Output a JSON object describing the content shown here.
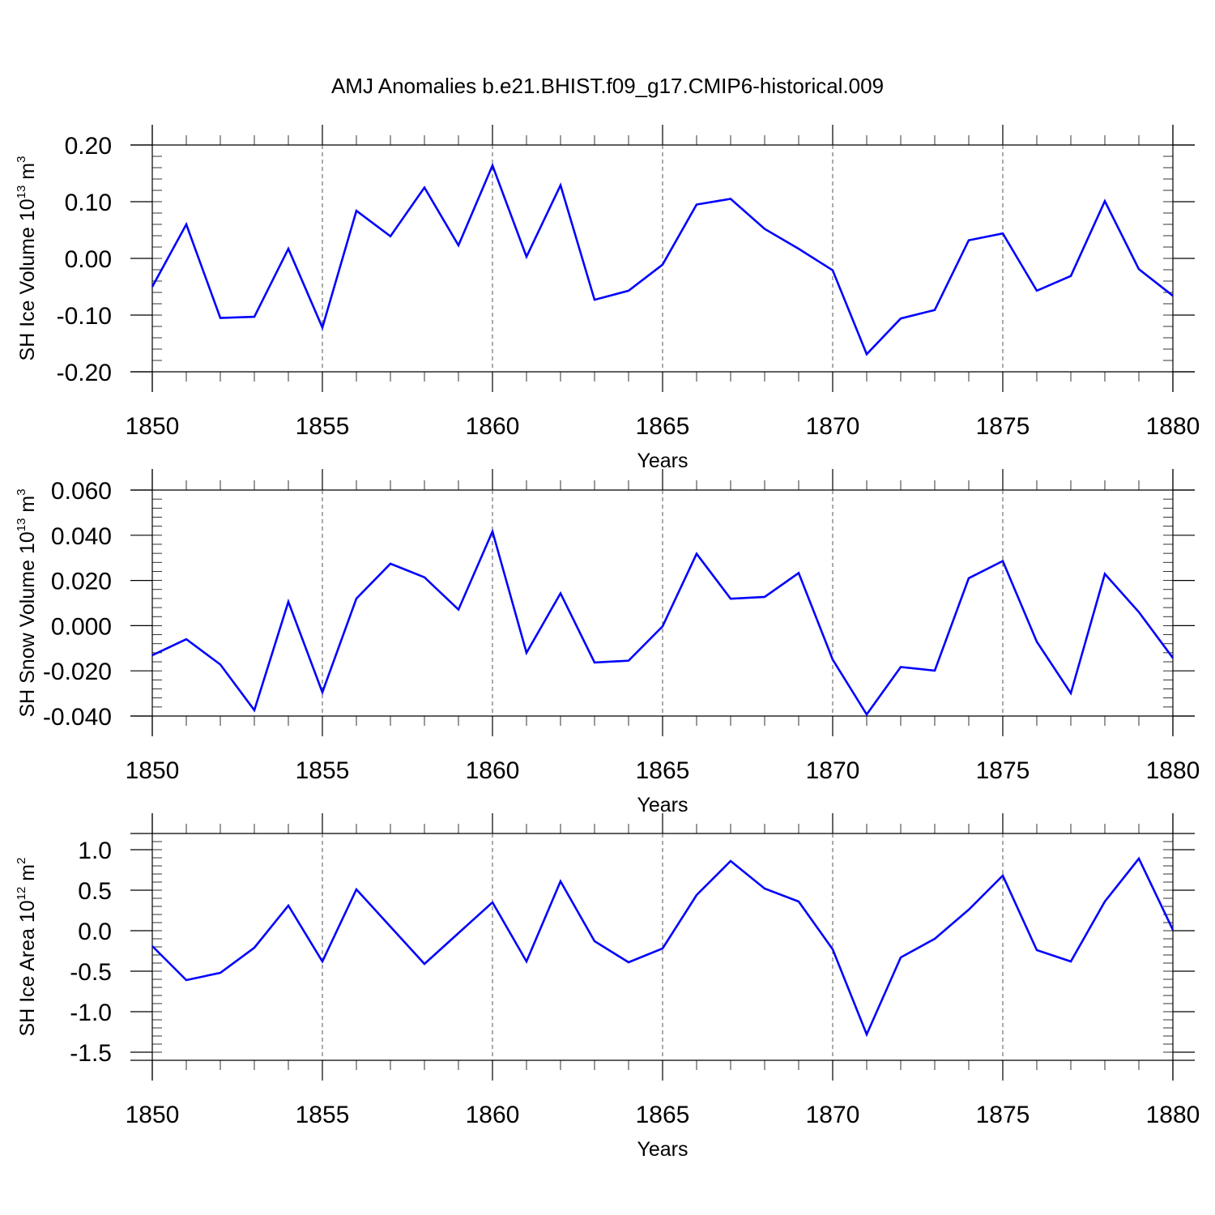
{
  "figure_title": "AMJ Anomalies b.e21.BHIST.f09_g17.CMIP6-historical.009",
  "colors": {
    "line": "#0000ff",
    "axis": "#000000",
    "grid": "#555555",
    "background": "#ffffff"
  },
  "chart_data": [
    {
      "type": "line",
      "xlabel": "Years",
      "ylabel": {
        "base": "SH Ice Volume 10",
        "exp": "13",
        "unit": " m",
        "unit_exp": "3"
      },
      "xlim": [
        1850,
        1880
      ],
      "ylim": [
        -0.2,
        0.2
      ],
      "x_ticks": [
        1850,
        1855,
        1860,
        1865,
        1870,
        1875,
        1880
      ],
      "x_tick_labels": [
        "1850",
        "1855",
        "1860",
        "1865",
        "1870",
        "1875",
        "1880"
      ],
      "y_ticks": [
        0.2,
        0.1,
        0.0,
        -0.1,
        -0.2
      ],
      "y_tick_labels": [
        "0.20",
        "0.10",
        "0.00",
        "-0.10",
        "-0.20"
      ],
      "grid": "vertical dashed at major x ticks",
      "series": [
        {
          "name": "SH Ice Volume",
          "x": [
            1850,
            1851,
            1852,
            1853,
            1854,
            1855,
            1856,
            1857,
            1858,
            1859,
            1860,
            1861,
            1862,
            1863,
            1864,
            1865,
            1866,
            1867,
            1868,
            1869,
            1870,
            1871,
            1872,
            1873,
            1874,
            1875,
            1876,
            1877,
            1878,
            1879,
            1880
          ],
          "values": [
            -0.05,
            0.06,
            -0.105,
            -0.103,
            0.017,
            -0.122,
            0.084,
            0.039,
            0.125,
            0.023,
            0.164,
            0.003,
            0.129,
            -0.073,
            -0.057,
            -0.011,
            0.095,
            0.105,
            0.052,
            0.017,
            -0.021,
            -0.169,
            -0.106,
            -0.091,
            0.032,
            0.044,
            -0.057,
            -0.031,
            0.101,
            -0.019,
            -0.066
          ]
        }
      ]
    },
    {
      "type": "line",
      "xlabel": "Years",
      "ylabel": {
        "base": "SH Snow Volume 10",
        "exp": "13",
        "unit": " m",
        "unit_exp": "3"
      },
      "xlim": [
        1850,
        1880
      ],
      "ylim": [
        -0.04,
        0.06
      ],
      "x_ticks": [
        1850,
        1855,
        1860,
        1865,
        1870,
        1875,
        1880
      ],
      "x_tick_labels": [
        "1850",
        "1855",
        "1860",
        "1865",
        "1870",
        "1875",
        "1880"
      ],
      "y_ticks": [
        0.06,
        0.04,
        0.02,
        0.0,
        -0.02,
        -0.04
      ],
      "y_tick_labels": [
        "0.060",
        "0.040",
        "0.020",
        "0.000",
        "-0.020",
        "-0.040"
      ],
      "grid": "vertical dashed at major x ticks",
      "series": [
        {
          "name": "SH Snow Volume",
          "x": [
            1850,
            1851,
            1852,
            1853,
            1854,
            1855,
            1856,
            1857,
            1858,
            1859,
            1860,
            1861,
            1862,
            1863,
            1864,
            1865,
            1866,
            1867,
            1868,
            1869,
            1870,
            1871,
            1872,
            1873,
            1874,
            1875,
            1876,
            1877,
            1878,
            1879,
            1880
          ],
          "values": [
            -0.0131,
            -0.006,
            -0.0172,
            -0.0374,
            0.0106,
            -0.0295,
            0.012,
            0.0274,
            0.0214,
            0.0071,
            0.0417,
            -0.012,
            0.0143,
            -0.0163,
            -0.0155,
            -0.0003,
            0.0318,
            0.0119,
            0.0127,
            0.0233,
            -0.015,
            -0.0393,
            -0.0183,
            -0.0199,
            0.021,
            0.0286,
            -0.0071,
            -0.0299,
            0.0229,
            0.006,
            -0.0143
          ]
        }
      ]
    },
    {
      "type": "line",
      "xlabel": "Years",
      "ylabel": {
        "base": "SH Ice Area 10",
        "exp": "12",
        "unit": " m",
        "unit_exp": "2"
      },
      "xlim": [
        1850,
        1880
      ],
      "ylim": [
        -1.6,
        1.2
      ],
      "x_ticks": [
        1850,
        1855,
        1860,
        1865,
        1870,
        1875,
        1880
      ],
      "x_tick_labels": [
        "1850",
        "1855",
        "1860",
        "1865",
        "1870",
        "1875",
        "1880"
      ],
      "y_ticks": [
        1.0,
        0.5,
        0.0,
        -0.5,
        -1.0,
        -1.5
      ],
      "y_tick_labels": [
        "1.0",
        "0.5",
        "0.0",
        "-0.5",
        "-1.0",
        "-1.5"
      ],
      "grid": "vertical dashed at major x ticks",
      "series": [
        {
          "name": "SH Ice Area",
          "x": [
            1850,
            1851,
            1852,
            1853,
            1854,
            1855,
            1856,
            1857,
            1858,
            1859,
            1860,
            1861,
            1862,
            1863,
            1864,
            1865,
            1866,
            1867,
            1868,
            1869,
            1870,
            1871,
            1872,
            1873,
            1874,
            1875,
            1876,
            1877,
            1878,
            1879,
            1880
          ],
          "values": [
            -0.19,
            -0.61,
            -0.52,
            -0.21,
            0.31,
            -0.38,
            0.51,
            0.05,
            -0.41,
            -0.03,
            0.35,
            -0.38,
            0.61,
            -0.13,
            -0.39,
            -0.22,
            0.44,
            0.86,
            0.52,
            0.36,
            -0.23,
            -1.28,
            -0.33,
            -0.1,
            0.26,
            0.68,
            -0.24,
            -0.38,
            0.36,
            0.89,
            0.01
          ]
        }
      ]
    }
  ]
}
